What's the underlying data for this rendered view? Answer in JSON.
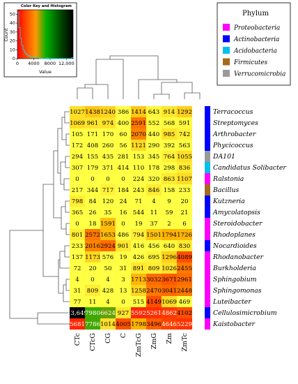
{
  "chart_data": {
    "type": "heatmap",
    "columns": [
      "CTc",
      "CTcG",
      "CG",
      "C",
      "ZmTcG",
      "ZmG",
      "Zm",
      "ZmTc"
    ],
    "rows": [
      {
        "name": "Terracoccus",
        "phylum": "Actinobacteria",
        "values": [
          "1027",
          "1438",
          "1240",
          "386",
          "1414",
          "643",
          "914",
          "1292"
        ]
      },
      {
        "name": "Streptomyces",
        "phylum": "Actinobacteria",
        "values": [
          "1069",
          "961",
          "974",
          "400",
          "2591",
          "552",
          "568",
          "591"
        ]
      },
      {
        "name": "Arthrobacter",
        "phylum": "Actinobacteria",
        "values": [
          "105",
          "171",
          "170",
          "60",
          "2070",
          "440",
          "985",
          "742"
        ]
      },
      {
        "name": "Phycicoccus",
        "phylum": "Actinobacteria",
        "values": [
          "172",
          "408",
          "260",
          "56",
          "1121",
          "290",
          "392",
          "563"
        ]
      },
      {
        "name": "DA101",
        "phylum": "Verrucomicrobia",
        "values": [
          "294",
          "155",
          "435",
          "281",
          "153",
          "345",
          "764",
          "1055"
        ]
      },
      {
        "name": "Candidatus Solibacter",
        "phylum": "Acidobacteria",
        "values": [
          "307",
          "179",
          "371",
          "414",
          "110",
          "178",
          "298",
          "836"
        ]
      },
      {
        "name": "Ralstonia",
        "phylum": "Proteobacteria",
        "values": [
          "0",
          "0",
          "0",
          "0",
          "224",
          "320",
          "863",
          "1107"
        ]
      },
      {
        "name": "Bacillus",
        "phylum": "Firmicutes",
        "values": [
          "217",
          "344",
          "717",
          "184",
          "243",
          "846",
          "158",
          "233"
        ]
      },
      {
        "name": "Kutzneria",
        "phylum": "Actinobacteria",
        "values": [
          "798",
          "84",
          "120",
          "24",
          "71",
          "4",
          "9",
          "20"
        ]
      },
      {
        "name": "Amycolatopsis",
        "phylum": "Actinobacteria",
        "values": [
          "365",
          "26",
          "35",
          "16",
          "544",
          "11",
          "59",
          "21"
        ]
      },
      {
        "name": "Steroidobacter",
        "phylum": "Proteobacteria",
        "values": [
          "0",
          "18",
          "1591",
          "0",
          "19",
          "37",
          "2",
          "6"
        ]
      },
      {
        "name": "Rhodoplanes",
        "phylum": "Proteobacteria",
        "values": [
          "801",
          "2572",
          "1653",
          "486",
          "794",
          "1501",
          "1794",
          "1726"
        ]
      },
      {
        "name": "Nocardioides",
        "phylum": "Actinobacteria",
        "values": [
          "233",
          "2016",
          "2924",
          "901",
          "416",
          "456",
          "640",
          "830"
        ]
      },
      {
        "name": "Rhodanobacter",
        "phylum": "Proteobacteria",
        "values": [
          "137",
          "1173",
          "576",
          "19",
          "426",
          "695",
          "1296",
          "4089"
        ]
      },
      {
        "name": "Burkholderia",
        "phylum": "Proteobacteria",
        "values": [
          "72",
          "20",
          "50",
          "31",
          "891",
          "809",
          "1026",
          "2455"
        ]
      },
      {
        "name": "Sphingobium",
        "phylum": "Proteobacteria",
        "values": [
          "4",
          "0",
          "4",
          "3",
          "1713",
          "3032",
          "3671",
          "2961"
        ]
      },
      {
        "name": "Sphingomonas",
        "phylum": "Proteobacteria",
        "values": [
          "31",
          "809",
          "428",
          "13",
          "1258",
          "2470",
          "3041",
          "2448"
        ]
      },
      {
        "name": "Luteibacter",
        "phylum": "Proteobacteria",
        "values": [
          "77",
          "11",
          "4",
          "0",
          "515",
          "4149",
          "1069",
          "469"
        ]
      },
      {
        "name": "Cellulosimicrobium",
        "phylum": "Actinobacteria",
        "values": [
          "13,649",
          "7980",
          "6624",
          "927",
          "5592",
          "5261",
          "4862",
          "4102"
        ]
      },
      {
        "name": "Kaistobacter",
        "phylum": "Proteobacteria",
        "values": [
          "5681",
          "7786",
          "1014",
          "4005",
          "1798",
          "3496",
          "4646",
          "5229"
        ]
      }
    ],
    "color_key": {
      "title": "Color Key and Histogram",
      "xlabel": "Value",
      "ylabel": "Count",
      "x_ticks": [
        "0",
        "4000",
        "8000",
        "12,000"
      ],
      "x_range": [
        0,
        13649
      ],
      "y_ticks": [
        "0",
        "10",
        "20",
        "30",
        "40",
        "50"
      ],
      "y_range": [
        0,
        55
      ],
      "colors": [
        "#ff0000",
        "#ff8800",
        "#00a000",
        "#000000"
      ],
      "histogram_counts": [
        52,
        35,
        23,
        15,
        10,
        7,
        5,
        4,
        3,
        2,
        2,
        1,
        1,
        1,
        1,
        1,
        0,
        0,
        0,
        0,
        0,
        1,
        0,
        0,
        0,
        0,
        0,
        0,
        0,
        0,
        0,
        0,
        0,
        0,
        0,
        0,
        0,
        0,
        0,
        1
      ]
    },
    "legend": {
      "title": "Phylum",
      "placement": "top-right",
      "entries": [
        {
          "label": "Proteobacteria",
          "color": "#ff00ff"
        },
        {
          "label": "Actinobacteria",
          "color": "#0000ff"
        },
        {
          "label": "Acidobacteria",
          "color": "#00bfef"
        },
        {
          "label": "Firmicutes",
          "color": "#a56b1d"
        },
        {
          "label": "Verrucomicrobia",
          "color": "#9a9a9a"
        }
      ]
    },
    "cell_colors": {
      "low": "#ffff44",
      "mid": "#ff2200",
      "green": "#22b000",
      "high": "#000000"
    }
  }
}
